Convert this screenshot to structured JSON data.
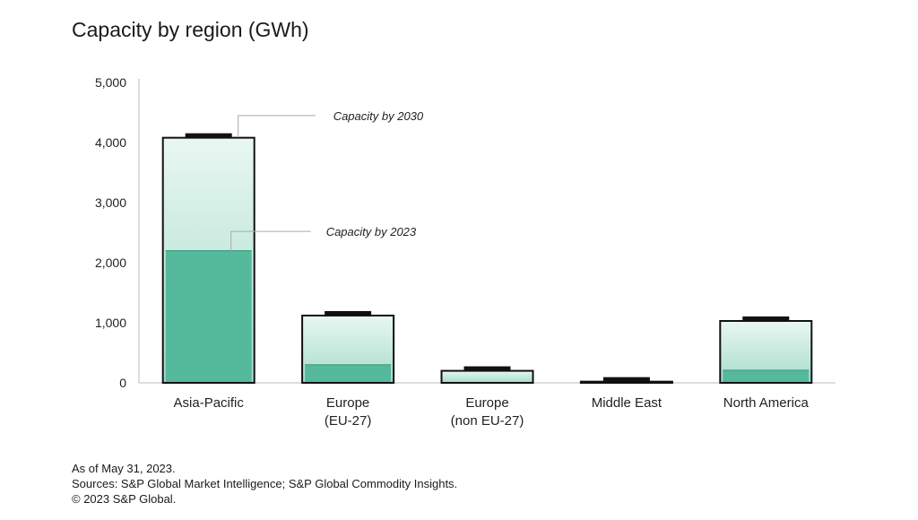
{
  "chart_data": {
    "type": "bar",
    "title": "Capacity by region (GWh)",
    "categories": [
      [
        "Asia-Pacific"
      ],
      [
        "Europe",
        "(EU-27)"
      ],
      [
        "Europe",
        "(non EU-27)"
      ],
      [
        "Middle East"
      ],
      [
        "North America"
      ]
    ],
    "series": [
      {
        "name": "Capacity by 2023",
        "values": [
          2200,
          300,
          0,
          0,
          210
        ]
      },
      {
        "name": "Capacity by 2030",
        "values": [
          4080,
          1120,
          200,
          20,
          1030
        ]
      }
    ],
    "ylim": [
      0,
      5000
    ],
    "yticks": [
      "0",
      "1,000",
      "2,000",
      "3,000",
      "4,000",
      "5,000"
    ],
    "ytick_values": [
      0,
      1000,
      2000,
      3000,
      4000,
      5000
    ],
    "grid": false,
    "colors": {
      "capacity_2023": "#55b99b",
      "capacity_2030_top": "#ffffff",
      "capacity_2030_bottom": "#a6dccb",
      "outline": "#111111",
      "axis": "#bbbbbb"
    }
  },
  "footer": {
    "line1": "As of May 31, 2023.",
    "line2": "Sources: S&P Global Market Intelligence; S&P Global Commodity Insights.",
    "line3": "© 2023 S&P Global."
  }
}
